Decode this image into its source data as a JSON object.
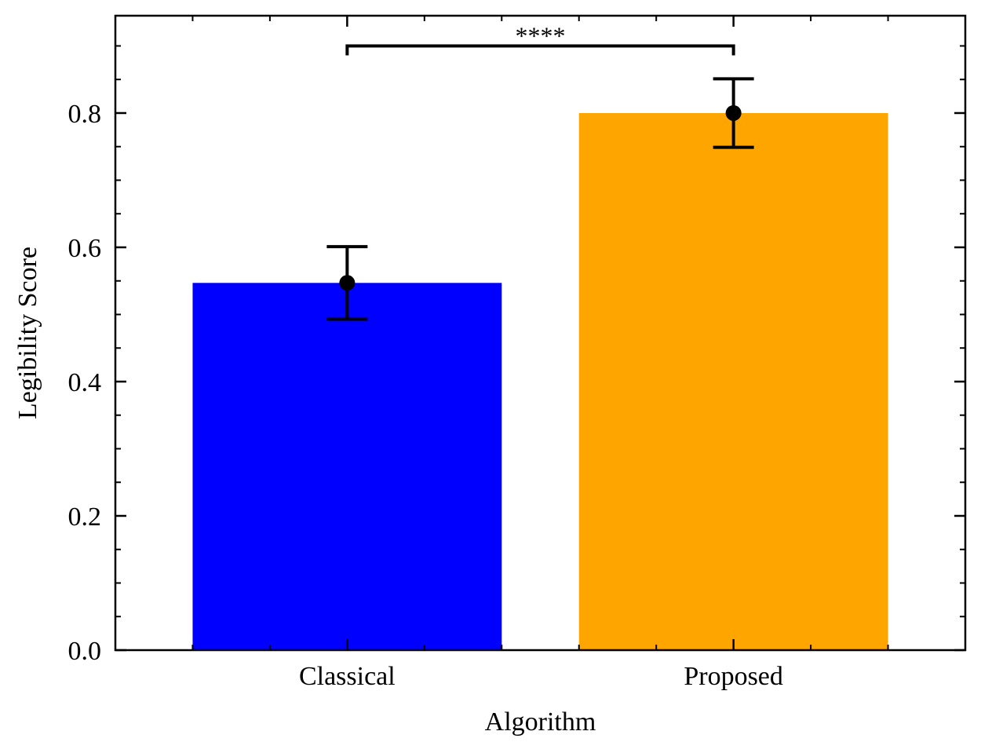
{
  "chart_data": {
    "type": "bar",
    "title": "",
    "xlabel": "Algorithm",
    "ylabel": "Legibility Score",
    "categories": [
      "Classical",
      "Proposed"
    ],
    "values": [
      0.547,
      0.8
    ],
    "errors": [
      0.054,
      0.051
    ],
    "bar_colors": [
      "#0000ff",
      "#ffa500"
    ],
    "ylim": [
      0.0,
      0.945
    ],
    "yticks": [
      "0.0",
      "0.2",
      "0.4",
      "0.6",
      "0.8"
    ],
    "ytick_values": [
      0.0,
      0.2,
      0.4,
      0.6,
      0.8
    ],
    "yminor_step": 0.05,
    "grid": false,
    "significance": {
      "label": "****",
      "between": [
        "Classical",
        "Proposed"
      ],
      "y": 0.9
    }
  }
}
